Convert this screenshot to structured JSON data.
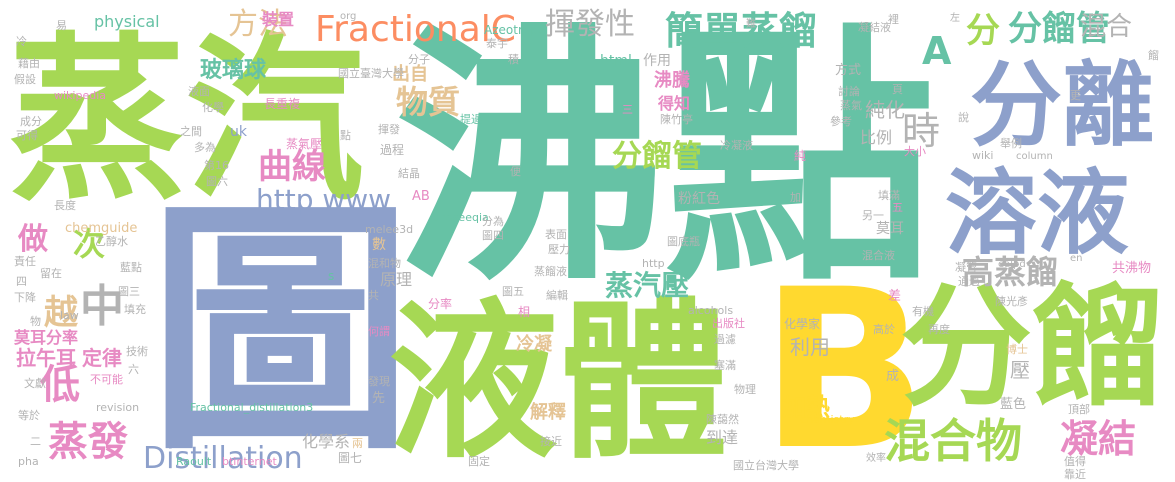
{
  "colors": {
    "green": "#a6d854",
    "teal": "#66c2a5",
    "blue": "#8da0cb",
    "yellow": "#ffd92f",
    "orange": "#fc8d62",
    "pink": "#e78ac3",
    "tan": "#e5c494",
    "gray": "#b3b3b3"
  },
  "words": [
    {
      "text": "沸點",
      "color": "#66c2a5"
    },
    {
      "text": "圖",
      "color": "#8da0cb"
    },
    {
      "text": "蒸汽",
      "color": "#a6d854"
    },
    {
      "text": "液體",
      "color": "#a6d854"
    },
    {
      "text": "B",
      "color": "#ffd92f"
    },
    {
      "text": "分餾",
      "color": "#a6d854"
    },
    {
      "text": "分離",
      "color": "#8da0cb"
    },
    {
      "text": "溶液",
      "color": "#8da0cb"
    },
    {
      "text": "混合物",
      "color": "#a6d854"
    },
    {
      "text": "蒸發",
      "color": "#e78ac3"
    },
    {
      "text": "Distillation",
      "color": "#8da0cb"
    },
    {
      "text": "凝結",
      "color": "#e78ac3"
    },
    {
      "text": "FractionalC",
      "color": "#fc8d62"
    },
    {
      "text": "簡單蒸餾",
      "color": "#66c2a5"
    },
    {
      "text": "揮發性",
      "color": "#b3b3b3"
    },
    {
      "text": "方法",
      "color": "#e5c494"
    },
    {
      "text": "分餾管",
      "color": "#66c2a5"
    },
    {
      "text": "分",
      "color": "#a6d854"
    },
    {
      "text": "混合",
      "color": "#b3b3b3"
    },
    {
      "text": "A",
      "color": "#66c2a5"
    },
    {
      "text": "曲線",
      "color": "#e78ac3"
    },
    {
      "text": "物質",
      "color": "#e5c494"
    },
    {
      "text": "分餾管",
      "color": "#a6d854"
    },
    {
      "text": "時",
      "color": "#b3b3b3"
    },
    {
      "text": "http www",
      "color": "#8da0cb"
    },
    {
      "text": "次",
      "color": "#a6d854"
    },
    {
      "text": "中",
      "color": "#b3b3b3"
    },
    {
      "text": "做",
      "color": "#e78ac3"
    },
    {
      "text": "低",
      "color": "#e78ac3"
    },
    {
      "text": "越",
      "color": "#e5c494"
    },
    {
      "text": "蒸汽壓",
      "color": "#66c2a5"
    },
    {
      "text": "高蒸餾",
      "color": "#b3b3b3"
    },
    {
      "text": "玻璃球",
      "color": "#66c2a5"
    },
    {
      "text": "沸騰",
      "color": "#e78ac3"
    },
    {
      "text": "純化",
      "color": "#b3b3b3"
    },
    {
      "text": "得知",
      "color": "#e78ac3"
    },
    {
      "text": "出自",
      "color": "#e5c494"
    },
    {
      "text": "比例",
      "color": "#b3b3b3"
    },
    {
      "text": "加熱",
      "color": "#ffd92f"
    },
    {
      "text": "利用",
      "color": "#b3b3b3"
    },
    {
      "text": "解釋",
      "color": "#e5c494"
    },
    {
      "text": "冷凝",
      "color": "#e5c494"
    },
    {
      "text": "原理",
      "color": "#b3b3b3"
    },
    {
      "text": "拉午耳",
      "color": "#e78ac3"
    },
    {
      "text": "定律",
      "color": "#e78ac3"
    },
    {
      "text": "莫耳分率",
      "color": "#e78ac3"
    },
    {
      "text": "化學系",
      "color": "#b3b3b3"
    },
    {
      "text": "到達",
      "color": "#b3b3b3"
    },
    {
      "text": "physical",
      "color": "#66c2a5"
    },
    {
      "text": "Azeotrope",
      "color": "#66c2a5"
    },
    {
      "text": "chemguide",
      "color": "#e5c494"
    },
    {
      "text": "Fractional_distillation3",
      "color": "#66c2a5"
    },
    {
      "text": "Raoult",
      "color": "#66c2a5"
    },
    {
      "text": "btinternet",
      "color": "#e78ac3"
    },
    {
      "text": "chemistry",
      "color": "#ffd92f"
    },
    {
      "text": "alcohols",
      "color": "#b3b3b3"
    },
    {
      "text": "phaseeqia",
      "color": "#66c2a5"
    },
    {
      "text": "melee3d",
      "color": "#b3b3b3"
    },
    {
      "text": "wikipedia",
      "color": "#e78ac3"
    },
    {
      "text": "html",
      "color": "#66c2a5"
    },
    {
      "text": "作用",
      "color": "#b3b3b3"
    },
    {
      "text": "裝置",
      "color": "#e78ac3"
    },
    {
      "text": "國立臺灣大學",
      "color": "#b3b3b3"
    },
    {
      "text": "國立台灣大學",
      "color": "#b3b3b3"
    },
    {
      "text": "粉紅色",
      "color": "#b3b3b3"
    },
    {
      "text": "莫耳",
      "color": "#b3b3b3"
    },
    {
      "text": "共沸物",
      "color": "#e78ac3"
    },
    {
      "text": "藍色",
      "color": "#b3b3b3"
    },
    {
      "text": "壓",
      "color": "#b3b3b3"
    },
    {
      "text": "方式",
      "color": "#b3b3b3"
    },
    {
      "text": "化學家",
      "color": "#b3b3b3"
    },
    {
      "text": "分率",
      "color": "#e78ac3"
    },
    {
      "text": "過程",
      "color": "#b3b3b3"
    },
    {
      "text": "圖七",
      "color": "#b3b3b3"
    },
    {
      "text": "蒸氣壓",
      "color": "#e78ac3"
    },
    {
      "text": "uk",
      "color": "#8da0cb"
    },
    {
      "text": "AB",
      "color": "#e78ac3"
    },
    {
      "text": "數",
      "color": "#e5c494"
    },
    {
      "text": "相",
      "color": "#e78ac3"
    },
    {
      "text": "成",
      "color": "#b3b3b3"
    },
    {
      "text": "差",
      "color": "#e78ac3"
    },
    {
      "text": "博士",
      "color": "#e5c494"
    },
    {
      "text": "值得",
      "color": "#b3b3b3"
    },
    {
      "text": "靠近",
      "color": "#b3b3b3"
    },
    {
      "text": "頂部",
      "color": "#b3b3b3"
    },
    {
      "text": "效率",
      "color": "#b3b3b3"
    },
    {
      "text": "出版社",
      "color": "#e78ac3"
    },
    {
      "text": "陳藹然",
      "color": "#b3b3b3"
    },
    {
      "text": "接近",
      "color": "#b3b3b3"
    },
    {
      "text": "兩",
      "color": "#e5c494"
    },
    {
      "text": "先",
      "color": "#b3b3b3"
    },
    {
      "text": "發現",
      "color": "#b3b3b3"
    },
    {
      "text": "何謂",
      "color": "#e78ac3"
    },
    {
      "text": "混和物",
      "color": "#b3b3b3"
    },
    {
      "text": "蒸餾液",
      "color": "#b3b3b3"
    },
    {
      "text": "圖五",
      "color": "#b3b3b3"
    },
    {
      "text": "編輯",
      "color": "#b3b3b3"
    },
    {
      "text": "圖六",
      "color": "#b3b3b3"
    },
    {
      "text": "圖三",
      "color": "#b3b3b3"
    },
    {
      "text": "圖四",
      "color": "#b3b3b3"
    },
    {
      "text": "圖底瓶",
      "color": "#b3b3b3"
    },
    {
      "text": "混合液",
      "color": "#b3b3b3"
    },
    {
      "text": "表面",
      "color": "#b3b3b3"
    },
    {
      "text": "壓力",
      "color": "#b3b3b3"
    },
    {
      "text": "塞滿",
      "color": "#b3b3b3"
    },
    {
      "text": "物理",
      "color": "#b3b3b3"
    },
    {
      "text": "過濾",
      "color": "#b3b3b3"
    },
    {
      "text": "高於",
      "color": "#b3b3b3"
    },
    {
      "text": "再度",
      "color": "#b3b3b3"
    },
    {
      "text": "通過",
      "color": "#b3b3b3"
    },
    {
      "text": "凝管",
      "color": "#b3b3b3"
    },
    {
      "text": "有機",
      "color": "#b3b3b3"
    },
    {
      "text": "陳光彥",
      "color": "#b3b3b3"
    },
    {
      "text": "填滿",
      "color": "#b3b3b3"
    },
    {
      "text": "另一",
      "color": "#b3b3b3"
    },
    {
      "text": "凝結液",
      "color": "#b3b3b3"
    },
    {
      "text": "蒸氣",
      "color": "#b3b3b3"
    },
    {
      "text": "討論",
      "color": "#b3b3b3"
    },
    {
      "text": "參考",
      "color": "#b3b3b3"
    },
    {
      "text": "舉例",
      "color": "#b3b3b3"
    },
    {
      "text": "大小",
      "color": "#e78ac3"
    },
    {
      "text": "陳竹亭",
      "color": "#b3b3b3"
    },
    {
      "text": "提過",
      "color": "#66c2a5"
    },
    {
      "text": "冷凝液",
      "color": "#b3b3b3"
    },
    {
      "text": "揮發",
      "color": "#b3b3b3"
    },
    {
      "text": "結晶",
      "color": "#b3b3b3"
    },
    {
      "text": "分為",
      "color": "#b3b3b3"
    },
    {
      "text": "長重複",
      "color": "#e78ac3"
    },
    {
      "text": "之間",
      "color": "#b3b3b3"
    },
    {
      "text": "多為",
      "color": "#b3b3b3"
    },
    {
      "text": "第16",
      "color": "#b3b3b3"
    },
    {
      "text": "化學",
      "color": "#b3b3b3"
    },
    {
      "text": "液面",
      "color": "#b3b3b3"
    },
    {
      "text": "藉由",
      "color": "#b3b3b3"
    },
    {
      "text": "假設",
      "color": "#b3b3b3"
    },
    {
      "text": "成分",
      "color": "#b3b3b3"
    },
    {
      "text": "可得",
      "color": "#b3b3b3"
    },
    {
      "text": "長度",
      "color": "#b3b3b3"
    },
    {
      "text": "乙醇水",
      "color": "#b3b3b3"
    },
    {
      "text": "責任",
      "color": "#b3b3b3"
    },
    {
      "text": "留在",
      "color": "#b3b3b3"
    },
    {
      "text": "藍點",
      "color": "#b3b3b3"
    },
    {
      "text": "下降",
      "color": "#b3b3b3"
    },
    {
      "text": "填充",
      "color": "#b3b3b3"
    },
    {
      "text": "技術",
      "color": "#b3b3b3"
    },
    {
      "text": "文獻",
      "color": "#b3b3b3"
    },
    {
      "text": "不可能",
      "color": "#e78ac3"
    },
    {
      "text": "等於",
      "color": "#b3b3b3"
    },
    {
      "text": "revision",
      "color": "#b3b3b3"
    },
    {
      "text": "pha",
      "color": "#b3b3b3"
    },
    {
      "text": "固定",
      "color": "#b3b3b3"
    },
    {
      "text": "law",
      "color": "#b3b3b3"
    },
    {
      "text": "org",
      "color": "#b3b3b3"
    },
    {
      "text": "http",
      "color": "#b3b3b3"
    },
    {
      "text": "wiki",
      "color": "#b3b3b3"
    },
    {
      "text": "column",
      "color": "#b3b3b3"
    },
    {
      "text": "ealpd",
      "color": "#b3b3b3"
    },
    {
      "text": "en",
      "color": "#b3b3b3"
    },
    {
      "text": "易",
      "color": "#b3b3b3"
    },
    {
      "text": "冷",
      "color": "#b3b3b3"
    },
    {
      "text": "分子",
      "color": "#b3b3b3"
    },
    {
      "text": "泰宇",
      "color": "#b3b3b3"
    },
    {
      "text": "積",
      "color": "#b3b3b3"
    },
    {
      "text": "點",
      "color": "#b3b3b3"
    },
    {
      "text": "便",
      "color": "#b3b3b3"
    },
    {
      "text": "純",
      "color": "#e78ac3"
    },
    {
      "text": "加",
      "color": "#b3b3b3"
    },
    {
      "text": "裡",
      "color": "#b3b3b3"
    },
    {
      "text": "說",
      "color": "#b3b3b3"
    },
    {
      "text": "頁",
      "color": "#b3b3b3"
    },
    {
      "text": "更",
      "color": "#b3b3b3"
    },
    {
      "text": "左",
      "color": "#b3b3b3"
    },
    {
      "text": "難",
      "color": "#b3b3b3"
    },
    {
      "text": "餾",
      "color": "#b3b3b3"
    },
    {
      "text": "四",
      "color": "#b3b3b3"
    },
    {
      "text": "物",
      "color": "#b3b3b3"
    },
    {
      "text": "六",
      "color": "#b3b3b3"
    },
    {
      "text": "二",
      "color": "#b3b3b3"
    },
    {
      "text": "共",
      "color": "#b3b3b3"
    },
    {
      "text": "五",
      "color": "#e78ac3"
    },
    {
      "text": "三",
      "color": "#e78ac3"
    },
    {
      "text": "s",
      "color": "#66c2a5"
    }
  ]
}
